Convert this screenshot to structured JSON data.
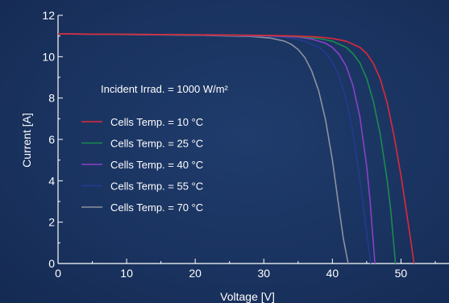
{
  "chart_data": {
    "type": "line",
    "xlabel": "Voltage [V]",
    "ylabel": "Current [A]",
    "xlim": [
      0,
      57
    ],
    "ylim": [
      0,
      12
    ],
    "xticks": [
      0,
      10,
      20,
      30,
      40,
      50
    ],
    "yticks": [
      0,
      2,
      4,
      6,
      8,
      10,
      12
    ],
    "grid": false,
    "annotation": "Incident Irrad. = 1000 W/m²",
    "legend_position": "center-left",
    "series": [
      {
        "name": "Cells Temp. =  10 °C",
        "color": "#e0283a",
        "x": [
          0,
          10,
          20,
          30,
          35,
          38,
          40,
          42,
          44,
          45,
          46,
          47,
          48,
          49,
          50,
          51,
          51.5,
          51.9
        ],
        "y": [
          11.1,
          11.08,
          11.06,
          11.03,
          11.0,
          10.95,
          10.88,
          10.75,
          10.45,
          10.15,
          9.65,
          8.9,
          7.75,
          6.15,
          4.25,
          2.05,
          0.95,
          0
        ]
      },
      {
        "name": "Cells Temp. =  25 °C",
        "color": "#1a8c4e",
        "x": [
          0,
          10,
          20,
          30,
          35,
          38,
          40,
          42,
          43,
          44,
          45,
          46,
          47,
          48,
          48.5,
          49.2
        ],
        "y": [
          11.1,
          11.08,
          11.06,
          11.03,
          10.98,
          10.88,
          10.75,
          10.45,
          10.15,
          9.7,
          8.95,
          7.8,
          6.2,
          4.0,
          2.6,
          0
        ]
      },
      {
        "name": "Cells Temp. =  40 °C",
        "color": "#8a3fc8",
        "x": [
          0,
          10,
          20,
          30,
          35,
          37,
          39,
          40,
          41,
          42,
          43,
          44,
          45,
          45.5,
          46.2
        ],
        "y": [
          11.1,
          11.08,
          11.06,
          11.02,
          10.95,
          10.85,
          10.65,
          10.45,
          10.1,
          9.55,
          8.6,
          7.1,
          4.7,
          3.0,
          0
        ]
      },
      {
        "name": "Cells Temp. =  55 °C",
        "color": "#233a90",
        "x": [
          0,
          10,
          20,
          30,
          34,
          36,
          38,
          39,
          40,
          41,
          42,
          43,
          44,
          45,
          45.6
        ],
        "y": [
          11.1,
          11.08,
          11.05,
          11.0,
          10.9,
          10.75,
          10.45,
          10.2,
          9.75,
          9.05,
          7.95,
          6.3,
          4.1,
          1.5,
          0
        ]
      },
      {
        "name": "Cells Temp. =  70 °C",
        "color": "#8c92a0",
        "x": [
          0,
          10,
          20,
          28,
          31,
          33,
          34,
          35,
          36,
          37,
          38,
          39,
          40,
          41,
          41.6,
          42.3
        ],
        "y": [
          11.1,
          11.07,
          11.04,
          10.98,
          10.9,
          10.75,
          10.6,
          10.35,
          9.95,
          9.3,
          8.35,
          6.95,
          5.0,
          2.6,
          1.2,
          0
        ]
      }
    ]
  }
}
